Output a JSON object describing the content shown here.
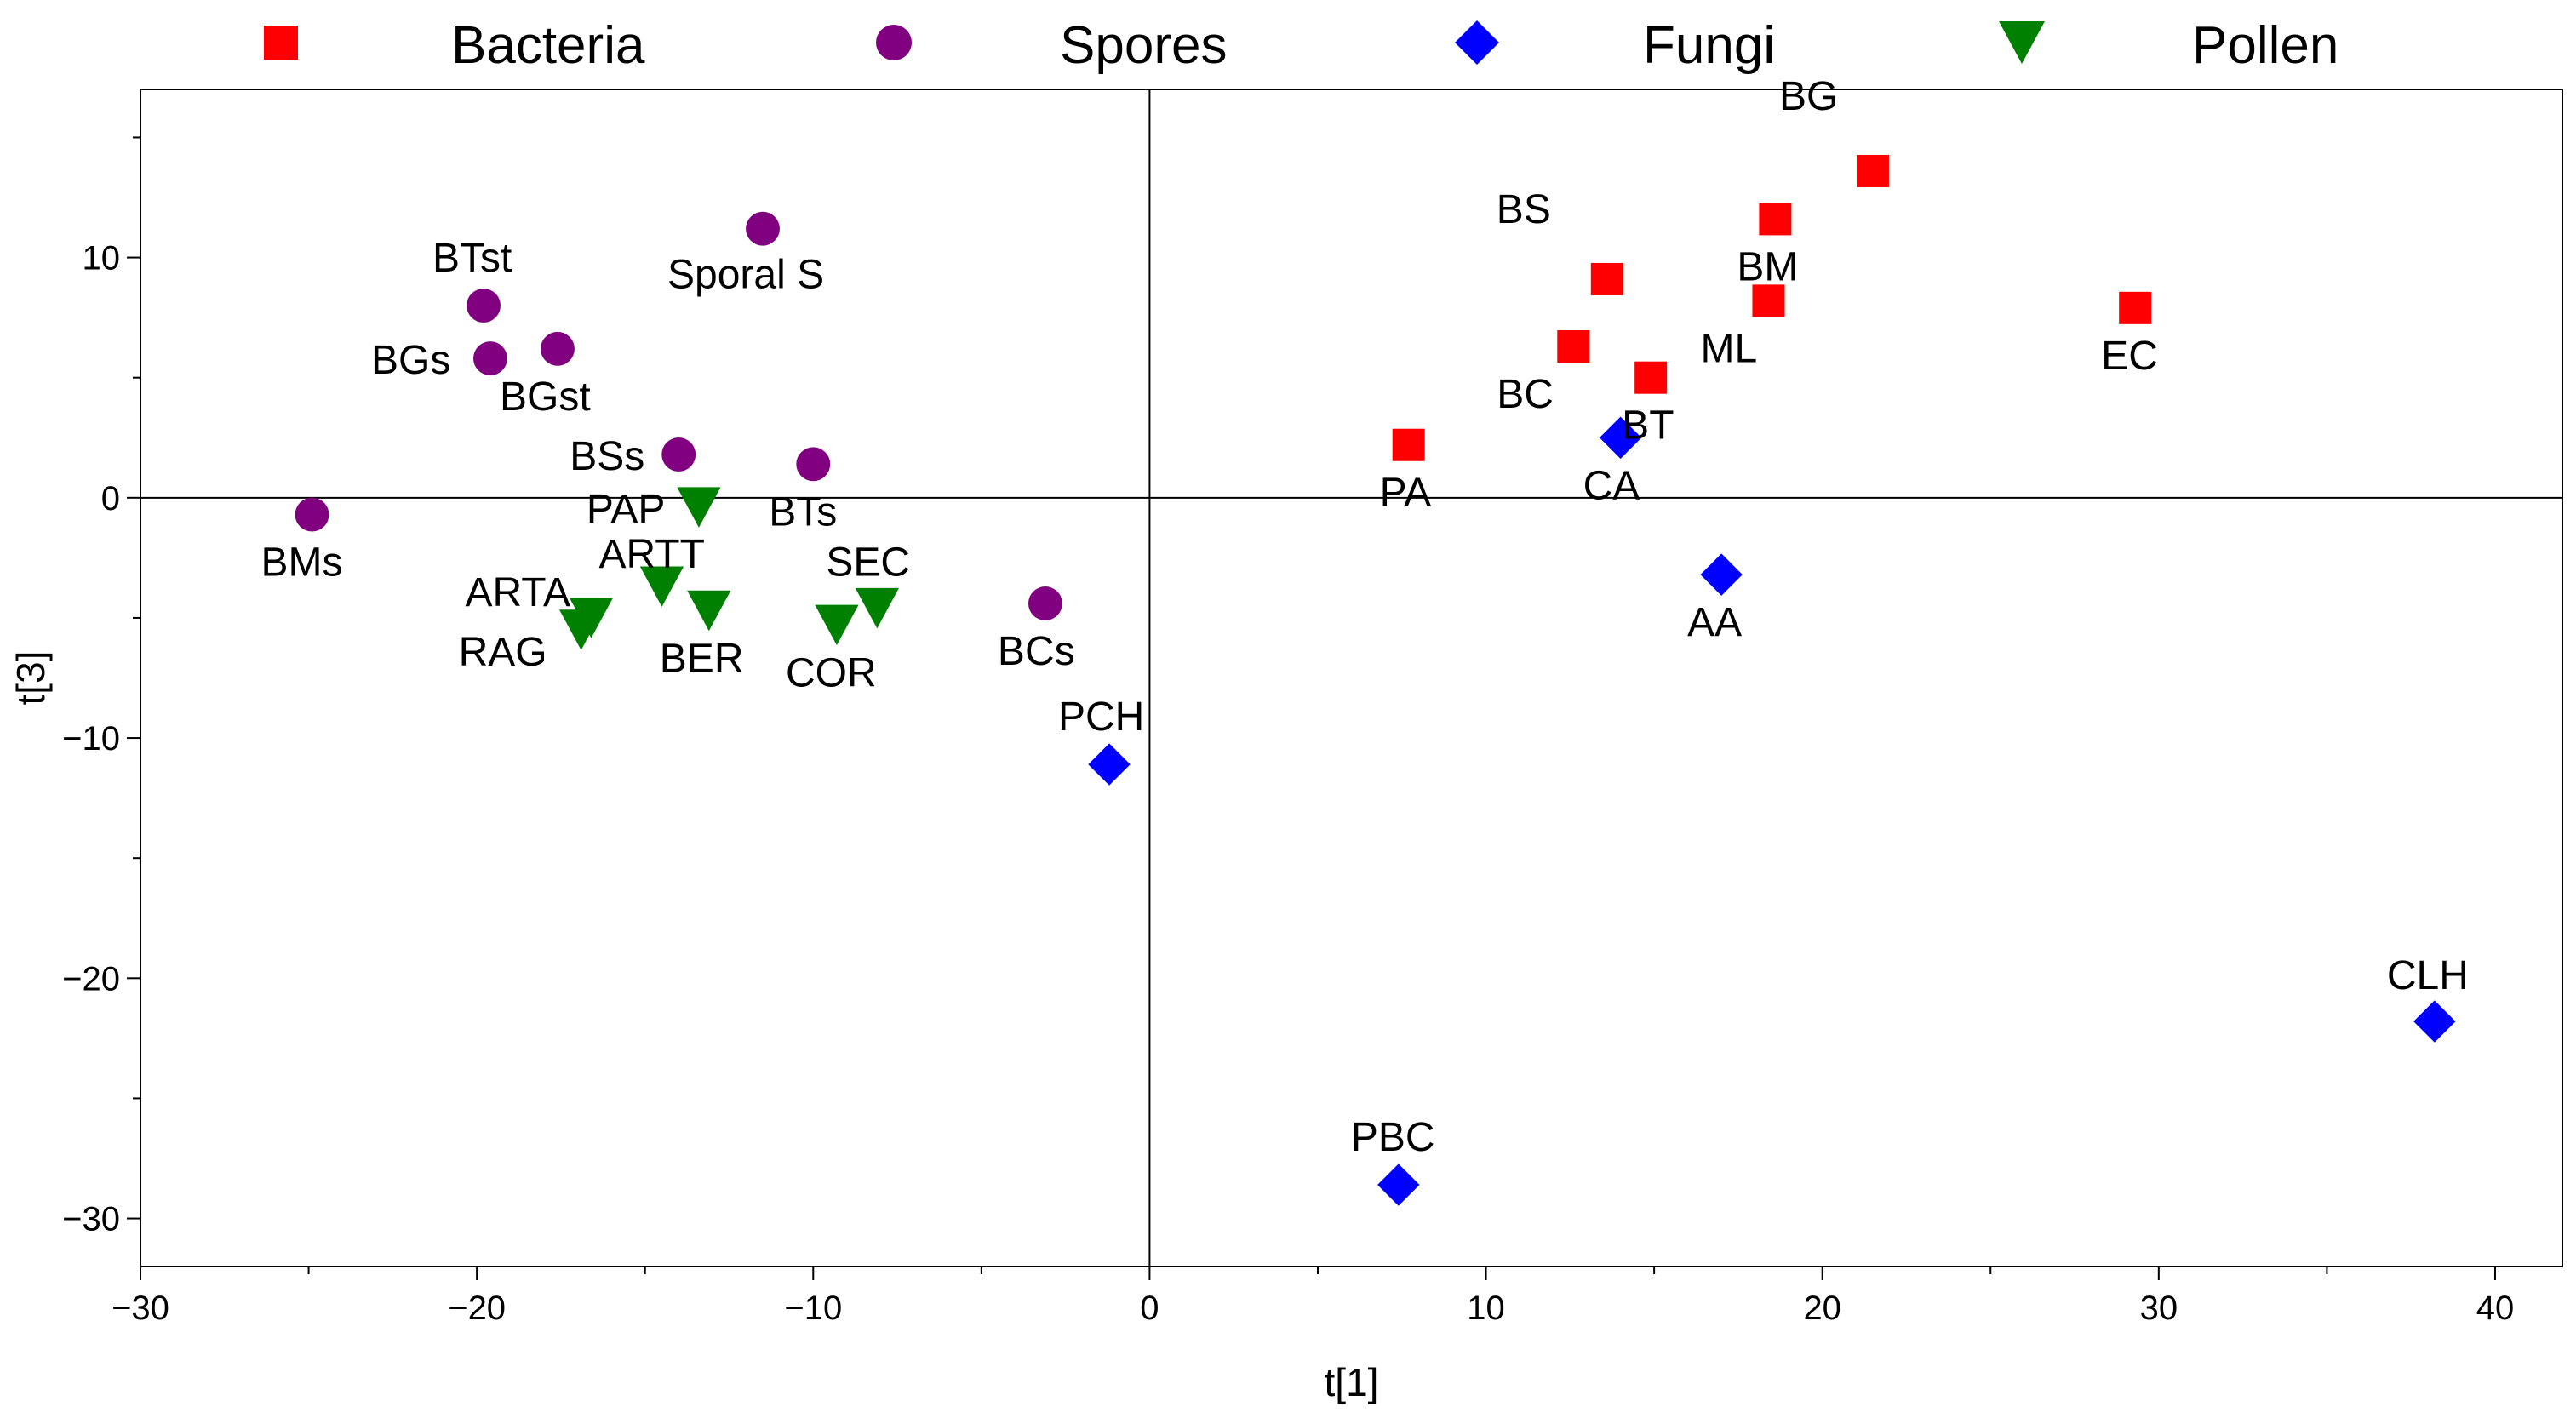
{
  "chart_data": {
    "type": "scatter",
    "title": "",
    "xlabel": "t[1]",
    "ylabel": "t[3]",
    "xlim": [
      -30,
      42
    ],
    "ylim": [
      -32,
      17
    ],
    "xticks": [
      -30,
      -20,
      -10,
      0,
      10,
      20,
      30,
      40
    ],
    "xtick_labels": [
      "−30",
      "−20",
      "−10",
      "0",
      "10",
      "20",
      "30",
      "40"
    ],
    "yticks": [
      10,
      0,
      -10,
      -20,
      -30
    ],
    "ytick_labels": [
      "10",
      "0",
      "−10",
      "−20",
      "−30"
    ],
    "zero_lines": true,
    "grid": false,
    "legend_position": "top",
    "series": [
      {
        "name": "Bacteria",
        "marker": "square",
        "color": "#ff0000",
        "points": [
          {
            "label": "BG",
            "x": 21.5,
            "y": 13.6
          },
          {
            "label": "BM",
            "x": 18.6,
            "y": 11.6
          },
          {
            "label": "BS",
            "x": 13.6,
            "y": 9.1
          },
          {
            "label": "ML",
            "x": 18.4,
            "y": 8.2
          },
          {
            "label": "EC",
            "x": 29.3,
            "y": 7.9
          },
          {
            "label": "BC",
            "x": 12.6,
            "y": 6.3
          },
          {
            "label": "BT",
            "x": 14.9,
            "y": 5.0
          },
          {
            "label": "PA",
            "x": 7.7,
            "y": 2.2
          }
        ]
      },
      {
        "name": "Spores",
        "marker": "circle",
        "color": "#800080",
        "points": [
          {
            "label": "Sporal S",
            "x": -11.5,
            "y": 11.2
          },
          {
            "label": "BTst",
            "x": -19.8,
            "y": 8.0
          },
          {
            "label": "BGs",
            "x": -19.6,
            "y": 5.8
          },
          {
            "label": "BGst",
            "x": -17.6,
            "y": 6.2
          },
          {
            "label": "BSs",
            "x": -14.0,
            "y": 1.8
          },
          {
            "label": "BTs",
            "x": -10.0,
            "y": 1.4
          },
          {
            "label": "BMs",
            "x": -24.9,
            "y": -0.7
          },
          {
            "label": "BCs",
            "x": -3.1,
            "y": -4.4
          }
        ]
      },
      {
        "name": "Fungi",
        "marker": "diamond",
        "color": "#0000ff",
        "points": [
          {
            "label": "CA",
            "x": 14.0,
            "y": 2.5
          },
          {
            "label": "AA",
            "x": 17.0,
            "y": -3.2
          },
          {
            "label": "PCH",
            "x": -1.2,
            "y": -11.1
          },
          {
            "label": "PBC",
            "x": 7.4,
            "y": -28.6
          },
          {
            "label": "CLH",
            "x": 38.2,
            "y": -21.8
          }
        ]
      },
      {
        "name": "Pollen",
        "marker": "triangle-down",
        "color": "#008000",
        "points": [
          {
            "label": "PAP",
            "x": -13.4,
            "y": -0.4
          },
          {
            "label": "ARTT",
            "x": -14.5,
            "y": -3.7
          },
          {
            "label": "ARTA",
            "x": -16.6,
            "y": -5.0
          },
          {
            "label": "RAG",
            "x": -16.9,
            "y": -5.5
          },
          {
            "label": "BER",
            "x": -13.1,
            "y": -4.7
          },
          {
            "label": "SEC",
            "x": -8.1,
            "y": -4.6
          },
          {
            "label": "COR",
            "x": -9.3,
            "y": -5.3
          }
        ]
      }
    ]
  }
}
